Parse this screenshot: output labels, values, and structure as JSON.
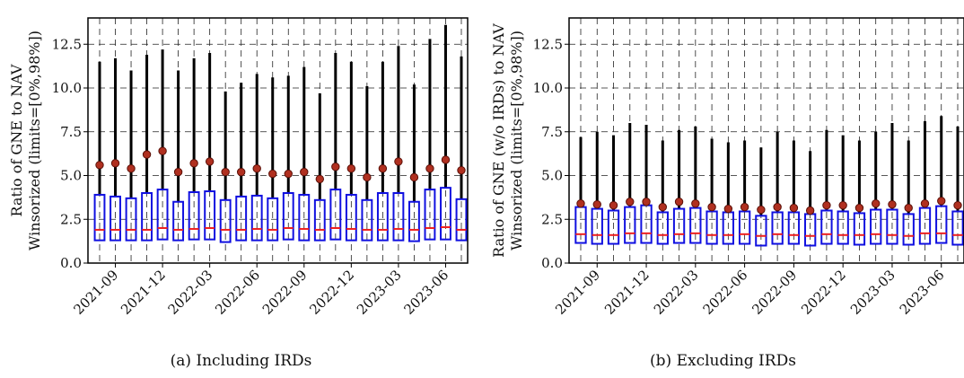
{
  "chart_data": [
    {
      "type": "box",
      "ylabel_lines": [
        "Ratio of GNE to NAV",
        "Winsorized (limits=[0%,98%])"
      ],
      "caption": "(a)  Including IRDs",
      "ylim": [
        0,
        14
      ],
      "yticks": [
        0.0,
        2.5,
        5.0,
        7.5,
        10.0,
        12.5
      ],
      "ytick_labels": [
        "0.0",
        "2.5",
        "5.0",
        "7.5",
        "10.0",
        "12.5"
      ],
      "xtick_labels": [
        "2021-09",
        "2021-12",
        "2022-03",
        "2022-06",
        "2022-09",
        "2022-12",
        "2023-03",
        "2023-06"
      ],
      "grid": true,
      "boxes": [
        {
          "q1": 1.3,
          "median": 1.9,
          "q3": 3.9,
          "whisker_high": 11.5,
          "mean": 5.6
        },
        {
          "q1": 1.3,
          "median": 1.9,
          "q3": 3.8,
          "whisker_high": 11.7,
          "mean": 5.7
        },
        {
          "q1": 1.3,
          "median": 1.9,
          "q3": 3.7,
          "whisker_high": 11.0,
          "mean": 5.4
        },
        {
          "q1": 1.3,
          "median": 1.9,
          "q3": 4.0,
          "whisker_high": 11.9,
          "mean": 6.2
        },
        {
          "q1": 1.35,
          "median": 2.0,
          "q3": 4.2,
          "whisker_high": 12.2,
          "mean": 6.4
        },
        {
          "q1": 1.3,
          "median": 1.9,
          "q3": 3.5,
          "whisker_high": 11.0,
          "mean": 5.2
        },
        {
          "q1": 1.35,
          "median": 1.95,
          "q3": 4.05,
          "whisker_high": 11.7,
          "mean": 5.7
        },
        {
          "q1": 1.35,
          "median": 2.0,
          "q3": 4.1,
          "whisker_high": 12.0,
          "mean": 5.8
        },
        {
          "q1": 1.2,
          "median": 1.9,
          "q3": 3.6,
          "whisker_high": 9.8,
          "mean": 5.2
        },
        {
          "q1": 1.3,
          "median": 1.9,
          "q3": 3.8,
          "whisker_high": 10.3,
          "mean": 5.2
        },
        {
          "q1": 1.3,
          "median": 1.95,
          "q3": 3.85,
          "whisker_high": 10.8,
          "mean": 5.4
        },
        {
          "q1": 1.3,
          "median": 1.9,
          "q3": 3.7,
          "whisker_high": 10.6,
          "mean": 5.1
        },
        {
          "q1": 1.35,
          "median": 2.0,
          "q3": 4.0,
          "whisker_high": 10.7,
          "mean": 5.1
        },
        {
          "q1": 1.3,
          "median": 1.95,
          "q3": 3.9,
          "whisker_high": 11.2,
          "mean": 5.2
        },
        {
          "q1": 1.3,
          "median": 1.9,
          "q3": 3.6,
          "whisker_high": 9.7,
          "mean": 4.8
        },
        {
          "q1": 1.35,
          "median": 2.0,
          "q3": 4.2,
          "whisker_high": 12.0,
          "mean": 5.5
        },
        {
          "q1": 1.3,
          "median": 1.95,
          "q3": 3.9,
          "whisker_high": 11.5,
          "mean": 5.4
        },
        {
          "q1": 1.3,
          "median": 1.9,
          "q3": 3.6,
          "whisker_high": 10.1,
          "mean": 4.9
        },
        {
          "q1": 1.3,
          "median": 1.9,
          "q3": 4.0,
          "whisker_high": 11.5,
          "mean": 5.4
        },
        {
          "q1": 1.3,
          "median": 1.95,
          "q3": 4.0,
          "whisker_high": 12.4,
          "mean": 5.8
        },
        {
          "q1": 1.25,
          "median": 1.9,
          "q3": 3.5,
          "whisker_high": 10.2,
          "mean": 4.9
        },
        {
          "q1": 1.35,
          "median": 2.0,
          "q3": 4.2,
          "whisker_high": 12.8,
          "mean": 5.4
        },
        {
          "q1": 1.35,
          "median": 2.05,
          "q3": 4.3,
          "whisker_high": 13.6,
          "mean": 5.9
        },
        {
          "q1": 1.3,
          "median": 1.9,
          "q3": 3.65,
          "whisker_high": 11.8,
          "mean": 5.3
        }
      ]
    },
    {
      "type": "box",
      "ylabel_lines": [
        "Ratio of GNE (w/o IRDs) to NAV",
        "Winsorized (limits=[0%,98%])"
      ],
      "caption": "(b)  Excluding IRDs",
      "ylim": [
        0,
        14
      ],
      "yticks": [
        0.0,
        2.5,
        5.0,
        7.5,
        10.0,
        12.5
      ],
      "ytick_labels": [
        "0.0",
        "2.5",
        "5.0",
        "7.5",
        "10.0",
        "12.5"
      ],
      "xtick_labels": [
        "2021-09",
        "2021-12",
        "2022-03",
        "2022-06",
        "2022-09",
        "2022-12",
        "2023-03",
        "2023-06"
      ],
      "grid": true,
      "boxes": [
        {
          "q1": 1.15,
          "median": 1.65,
          "q3": 3.2,
          "whisker_high": 7.2,
          "mean": 3.4
        },
        {
          "q1": 1.1,
          "median": 1.6,
          "q3": 3.1,
          "whisker_high": 7.5,
          "mean": 3.35
        },
        {
          "q1": 1.1,
          "median": 1.6,
          "q3": 3.0,
          "whisker_high": 7.3,
          "mean": 3.3
        },
        {
          "q1": 1.15,
          "median": 1.7,
          "q3": 3.2,
          "whisker_high": 8.0,
          "mean": 3.5
        },
        {
          "q1": 1.15,
          "median": 1.7,
          "q3": 3.3,
          "whisker_high": 7.9,
          "mean": 3.5
        },
        {
          "q1": 1.1,
          "median": 1.6,
          "q3": 2.9,
          "whisker_high": 7.0,
          "mean": 3.2
        },
        {
          "q1": 1.15,
          "median": 1.65,
          "q3": 3.1,
          "whisker_high": 7.6,
          "mean": 3.5
        },
        {
          "q1": 1.15,
          "median": 1.7,
          "q3": 3.15,
          "whisker_high": 7.8,
          "mean": 3.4
        },
        {
          "q1": 1.1,
          "median": 1.6,
          "q3": 2.95,
          "whisker_high": 7.1,
          "mean": 3.2
        },
        {
          "q1": 1.1,
          "median": 1.6,
          "q3": 2.9,
          "whisker_high": 6.9,
          "mean": 3.1
        },
        {
          "q1": 1.1,
          "median": 1.65,
          "q3": 2.95,
          "whisker_high": 7.0,
          "mean": 3.2
        },
        {
          "q1": 1.0,
          "median": 1.55,
          "q3": 2.7,
          "whisker_high": 6.6,
          "mean": 3.05
        },
        {
          "q1": 1.1,
          "median": 1.65,
          "q3": 2.9,
          "whisker_high": 7.5,
          "mean": 3.2
        },
        {
          "q1": 1.1,
          "median": 1.6,
          "q3": 2.9,
          "whisker_high": 7.0,
          "mean": 3.15
        },
        {
          "q1": 1.0,
          "median": 1.55,
          "q3": 2.8,
          "whisker_high": 6.4,
          "mean": 3.0
        },
        {
          "q1": 1.1,
          "median": 1.65,
          "q3": 3.0,
          "whisker_high": 7.6,
          "mean": 3.3
        },
        {
          "q1": 1.1,
          "median": 1.6,
          "q3": 2.95,
          "whisker_high": 7.3,
          "mean": 3.3
        },
        {
          "q1": 1.05,
          "median": 1.6,
          "q3": 2.85,
          "whisker_high": 7.0,
          "mean": 3.15
        },
        {
          "q1": 1.1,
          "median": 1.65,
          "q3": 3.05,
          "whisker_high": 7.5,
          "mean": 3.4
        },
        {
          "q1": 1.1,
          "median": 1.6,
          "q3": 3.05,
          "whisker_high": 8.0,
          "mean": 3.35
        },
        {
          "q1": 1.05,
          "median": 1.55,
          "q3": 2.8,
          "whisker_high": 7.0,
          "mean": 3.15
        },
        {
          "q1": 1.1,
          "median": 1.7,
          "q3": 3.15,
          "whisker_high": 8.1,
          "mean": 3.4
        },
        {
          "q1": 1.15,
          "median": 1.7,
          "q3": 3.25,
          "whisker_high": 8.4,
          "mean": 3.55
        },
        {
          "q1": 1.05,
          "median": 1.6,
          "q3": 2.95,
          "whisker_high": 7.8,
          "mean": 3.3
        }
      ]
    }
  ],
  "colors": {
    "box": "#1010e0",
    "median": "#ee2020",
    "whisker": "#000000",
    "mean_fill": "#b03020",
    "mean_stroke": "#5a1008",
    "grid": "#222222"
  }
}
